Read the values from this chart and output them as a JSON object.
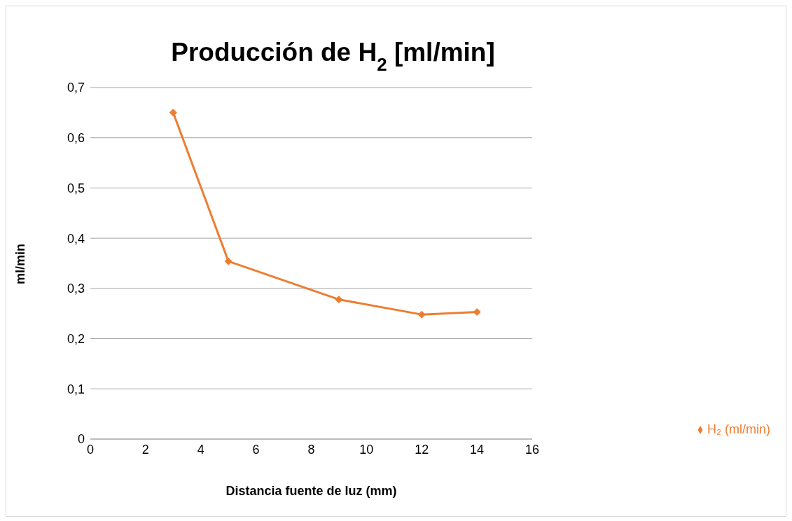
{
  "chart_data": {
    "type": "line",
    "title": "Producción de H$_{2}$ [ml/min]",
    "xlabel": "Distancia fuente de luz (mm)",
    "ylabel": "ml/min",
    "x": [
      3,
      5,
      9,
      12,
      14
    ],
    "series": [
      {
        "name": "H₂ (ml/min)",
        "color": "#ed7d31",
        "values": [
          0.65,
          0.354,
          0.278,
          0.248,
          0.253
        ]
      }
    ],
    "xlim": [
      0,
      16
    ],
    "xticks": [
      0,
      2,
      4,
      6,
      8,
      10,
      12,
      14,
      16
    ],
    "ylim": [
      0,
      0.7
    ],
    "yticks": [
      {
        "value": 0,
        "label": "0"
      },
      {
        "value": 0.1,
        "label": "0,1"
      },
      {
        "value": 0.2,
        "label": "0,2"
      },
      {
        "value": 0.3,
        "label": "0,3"
      },
      {
        "value": 0.4,
        "label": "0,4"
      },
      {
        "value": 0.5,
        "label": "0,5"
      },
      {
        "value": 0.6,
        "label": "0,6"
      },
      {
        "value": 0.7,
        "label": "0,7"
      }
    ],
    "grid": "y",
    "legend": "right",
    "marker": "diamond",
    "line_style": "solid"
  }
}
